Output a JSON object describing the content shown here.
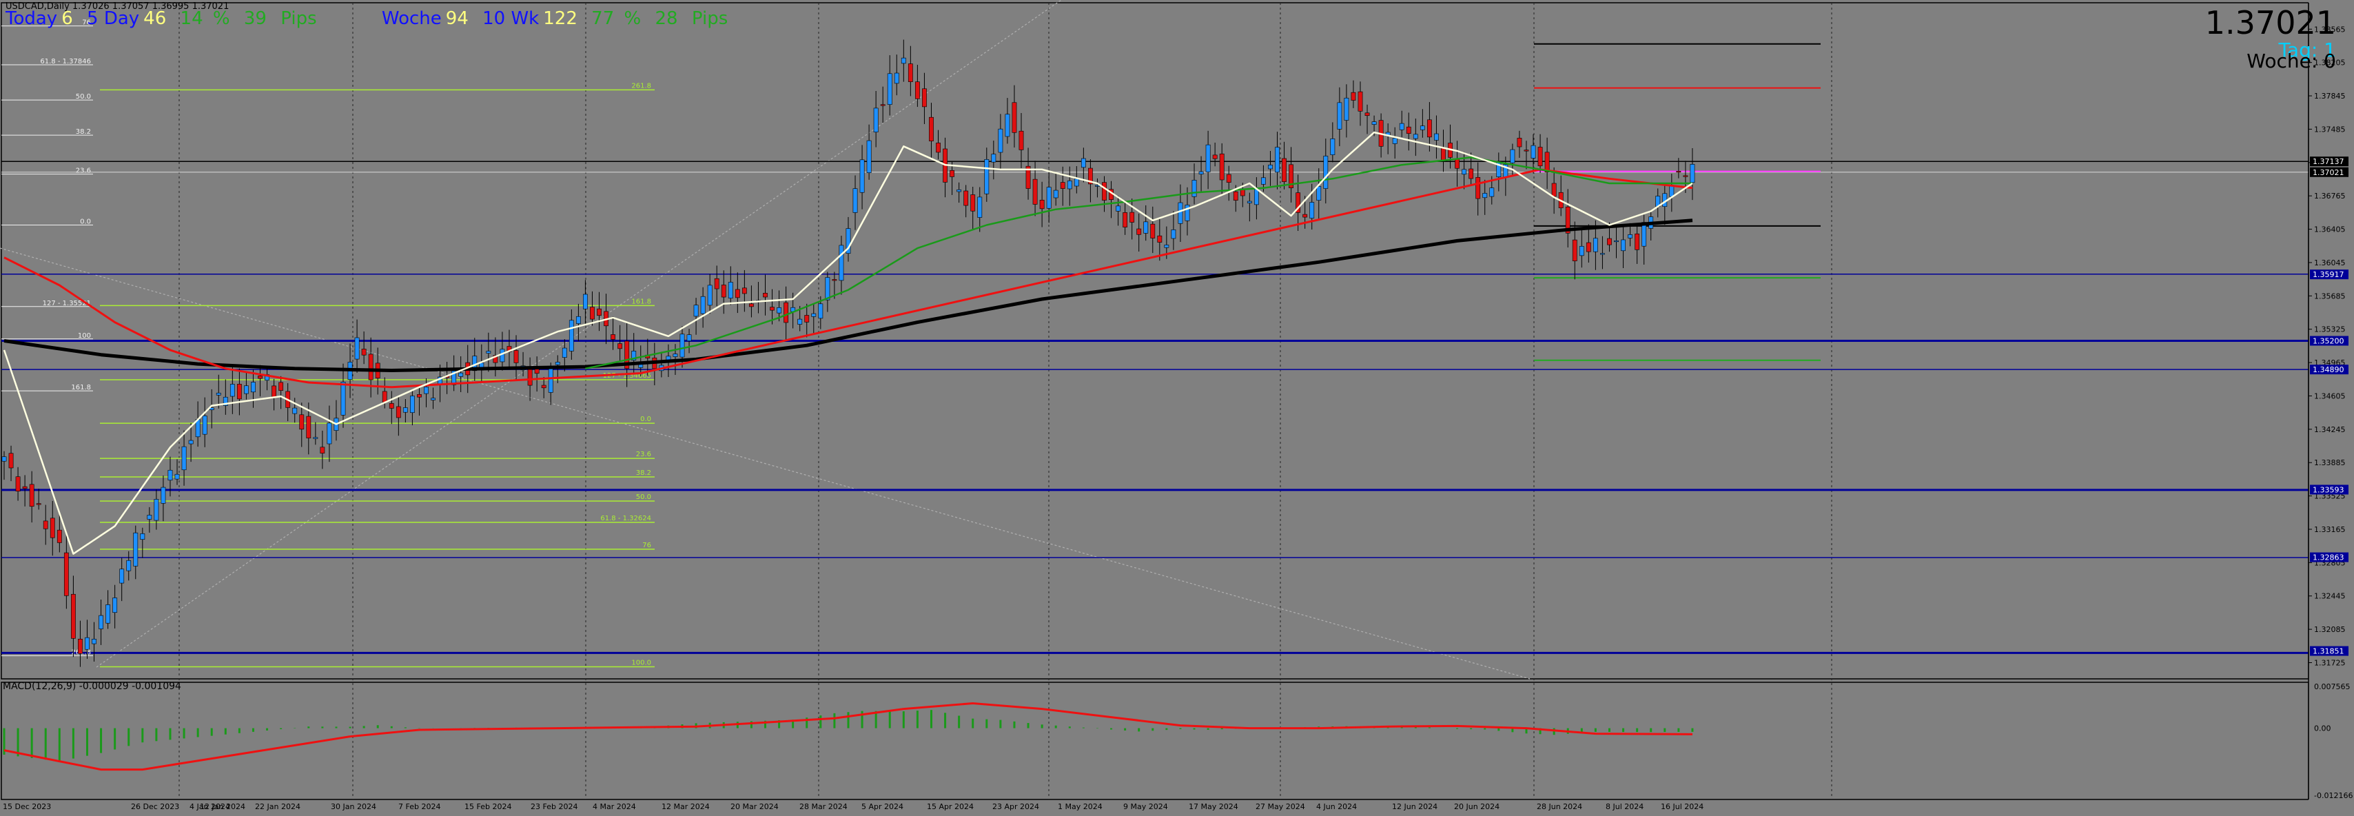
{
  "header": {
    "symbol_line": "USDCAD,Daily  1.37026 1.37057 1.36995 1.37021",
    "stats": {
      "today_label": "Today",
      "today_value": "6",
      "days_label": "5 Day",
      "days_value": "46",
      "pct_value": "14",
      "pct_sign": "%",
      "pips_value": "39",
      "pips_label": "Pips",
      "week_label": "Woche",
      "week_value": "94",
      "wk10_label": "10 Wk",
      "wk10_value": "122",
      "wpct_value": "77",
      "wpct_sign": "%",
      "wpips_value": "28",
      "wpips_label": "Pips"
    },
    "big_price": "1.37021",
    "tag_label": "Tag: 1",
    "woche_label": "Woche: 0"
  },
  "macd_label": "MACD(12,26,9) -0.000029 -0.001094",
  "colors": {
    "background": "#808080",
    "bull": "#1e90ff",
    "bear": "#e01010",
    "ma_fast": "#ffffe0",
    "ma_mid": "#1a9a1a",
    "ma_red": "#ee1111",
    "ma_slow": "#000000",
    "fib": "#aaee33",
    "support_blue": "#000099"
  },
  "chart_data": [
    {
      "type": "candlestick",
      "title": "USDCAD,Daily",
      "x_labels": [
        "15 Dec 2023",
        "26 Dec 2023",
        "4 Jan 2024",
        "12 Jan 2024",
        "22 Jan 2024",
        "30 Jan 2024",
        "7 Feb 2024",
        "15 Feb 2024",
        "23 Feb 2024",
        "4 Mar 2024",
        "12 Mar 2024",
        "20 Mar 2024",
        "28 Mar 2024",
        "5 Apr 2024",
        "15 Apr 2024",
        "23 Apr 2024",
        "1 May 2024",
        "9 May 2024",
        "17 May 2024",
        "27 May 2024",
        "4 Jun 2024",
        "12 Jun 2024",
        "20 Jun 2024",
        "28 Jun 2024",
        "8 Jul 2024",
        "16 Jul 2024"
      ],
      "y_ticks": [
        "1.38565",
        "1.38205",
        "1.37845",
        "1.37485",
        "1.37125",
        "1.36765",
        "1.36405",
        "1.36045",
        "1.35685",
        "1.35325",
        "1.34965",
        "1.34605",
        "1.34245",
        "1.33885",
        "1.33525",
        "1.33165",
        "1.32805",
        "1.32445",
        "1.32085",
        "1.31725"
      ],
      "ylim": [
        1.3155,
        1.3885
      ],
      "grid": "vertical-dotted",
      "waypoints": [
        [
          0,
          1.339
        ],
        [
          8,
          1.33
        ],
        [
          10,
          1.319
        ],
        [
          13,
          1.32
        ],
        [
          20,
          1.332
        ],
        [
          30,
          1.3455
        ],
        [
          38,
          1.348
        ],
        [
          46,
          1.34
        ],
        [
          51,
          1.352
        ],
        [
          56,
          1.344
        ],
        [
          64,
          1.348
        ],
        [
          72,
          1.351
        ],
        [
          78,
          1.347
        ],
        [
          84,
          1.3565
        ],
        [
          90,
          1.35
        ],
        [
          96,
          1.3495
        ],
        [
          102,
          1.358
        ],
        [
          110,
          1.356
        ],
        [
          116,
          1.354
        ],
        [
          120,
          1.359
        ],
        [
          126,
          1.377
        ],
        [
          130,
          1.3825
        ],
        [
          136,
          1.37
        ],
        [
          140,
          1.366
        ],
        [
          145,
          1.377
        ],
        [
          149,
          1.3665
        ],
        [
          156,
          1.3705
        ],
        [
          162,
          1.365
        ],
        [
          168,
          1.3625
        ],
        [
          174,
          1.3725
        ],
        [
          179,
          1.3665
        ],
        [
          184,
          1.372
        ],
        [
          188,
          1.3645
        ],
        [
          194,
          1.379
        ],
        [
          199,
          1.374
        ],
        [
          205,
          1.375
        ],
        [
          211,
          1.37
        ],
        [
          214,
          1.3675
        ],
        [
          218,
          1.373
        ],
        [
          222,
          1.372
        ],
        [
          227,
          1.3615
        ],
        [
          232,
          1.3625
        ],
        [
          236,
          1.363
        ],
        [
          241,
          1.3695
        ],
        [
          244,
          1.3702
        ]
      ],
      "overlays": {
        "ma_fast": [
          [
            0,
            1.351
          ],
          [
            10,
            1.329
          ],
          [
            16,
            1.332
          ],
          [
            24,
            1.3405
          ],
          [
            30,
            1.345
          ],
          [
            40,
            1.346
          ],
          [
            48,
            1.343
          ],
          [
            60,
            1.347
          ],
          [
            70,
            1.35
          ],
          [
            80,
            1.353
          ],
          [
            88,
            1.3545
          ],
          [
            96,
            1.3525
          ],
          [
            104,
            1.356
          ],
          [
            114,
            1.3565
          ],
          [
            122,
            1.362
          ],
          [
            130,
            1.373
          ],
          [
            136,
            1.371
          ],
          [
            144,
            1.3705
          ],
          [
            150,
            1.3705
          ],
          [
            158,
            1.369
          ],
          [
            166,
            1.365
          ],
          [
            172,
            1.3665
          ],
          [
            180,
            1.369
          ],
          [
            186,
            1.3655
          ],
          [
            192,
            1.3705
          ],
          [
            198,
            1.3745
          ],
          [
            204,
            1.3735
          ],
          [
            210,
            1.3725
          ],
          [
            218,
            1.3705
          ],
          [
            224,
            1.3675
          ],
          [
            232,
            1.3645
          ],
          [
            238,
            1.366
          ],
          [
            244,
            1.369
          ]
        ],
        "ma_mid": [
          [
            84,
            1.349
          ],
          [
            100,
            1.3515
          ],
          [
            112,
            1.3545
          ],
          [
            122,
            1.3575
          ],
          [
            132,
            1.362
          ],
          [
            142,
            1.3645
          ],
          [
            152,
            1.3662
          ],
          [
            162,
            1.367
          ],
          [
            172,
            1.368
          ],
          [
            182,
            1.3685
          ],
          [
            192,
            1.3695
          ],
          [
            202,
            1.371
          ],
          [
            212,
            1.3718
          ],
          [
            222,
            1.3705
          ],
          [
            232,
            1.369
          ],
          [
            244,
            1.369
          ]
        ],
        "ma_red": [
          [
            0,
            1.361
          ],
          [
            8,
            1.358
          ],
          [
            16,
            1.354
          ],
          [
            24,
            1.351
          ],
          [
            32,
            1.349
          ],
          [
            44,
            1.3475
          ],
          [
            56,
            1.347
          ],
          [
            68,
            1.3475
          ],
          [
            80,
            1.348
          ],
          [
            92,
            1.3485
          ],
          [
            222,
            1.3705
          ],
          [
            232,
            1.3695
          ],
          [
            244,
            1.3685
          ]
        ],
        "ma_slow": [
          [
            0,
            1.352
          ],
          [
            14,
            1.3505
          ],
          [
            28,
            1.3495
          ],
          [
            42,
            1.349
          ],
          [
            56,
            1.3488
          ],
          [
            70,
            1.349
          ],
          [
            84,
            1.3492
          ],
          [
            100,
            1.35
          ],
          [
            116,
            1.3515
          ],
          [
            132,
            1.354
          ],
          [
            150,
            1.3565
          ],
          [
            170,
            1.3585
          ],
          [
            190,
            1.3605
          ],
          [
            210,
            1.3628
          ],
          [
            226,
            1.364
          ],
          [
            244,
            1.365
          ]
        ]
      },
      "price_labels": [
        "1.37137",
        "1.37021",
        "1.35917",
        "1.35200",
        "1.34890",
        "1.33593",
        "1.32863",
        "1.31851"
      ],
      "fib_labels_left": [
        "76",
        "61.8 - 1.37846",
        "50.0",
        "38.2",
        "23.6",
        "0.0",
        "127 - 1.35521",
        "100",
        "161.8",
        "261.8"
      ],
      "fib_labels_mid": [
        "261.8",
        "161.8",
        "127 - 1.34665",
        "0.0",
        "23.6",
        "38.2",
        "50.0",
        "61.8 - 1.32624",
        "76",
        "100.0"
      ]
    },
    {
      "type": "bar",
      "title": "MACD(12,26,9) -0.000029 -0.001094",
      "y_ticks": [
        "0.007565",
        "0.00",
        "-0.012166"
      ],
      "ylim": [
        -0.012166,
        0.007565
      ],
      "signal_points": [
        [
          0,
          -0.004
        ],
        [
          8,
          -0.006
        ],
        [
          14,
          -0.0075
        ],
        [
          20,
          -0.0075
        ],
        [
          30,
          -0.0055
        ],
        [
          40,
          -0.0035
        ],
        [
          50,
          -0.0015
        ],
        [
          60,
          -0.0003
        ],
        [
          80,
          0.0
        ],
        [
          100,
          0.0003
        ],
        [
          120,
          0.0018
        ],
        [
          130,
          0.0035
        ],
        [
          140,
          0.0045
        ],
        [
          150,
          0.0035
        ],
        [
          160,
          0.002
        ],
        [
          170,
          0.0005
        ],
        [
          180,
          0.0
        ],
        [
          190,
          0.0
        ],
        [
          200,
          0.0003
        ],
        [
          210,
          0.0004
        ],
        [
          220,
          0.0
        ],
        [
          230,
          -0.001
        ],
        [
          244,
          -0.0011
        ]
      ]
    }
  ]
}
